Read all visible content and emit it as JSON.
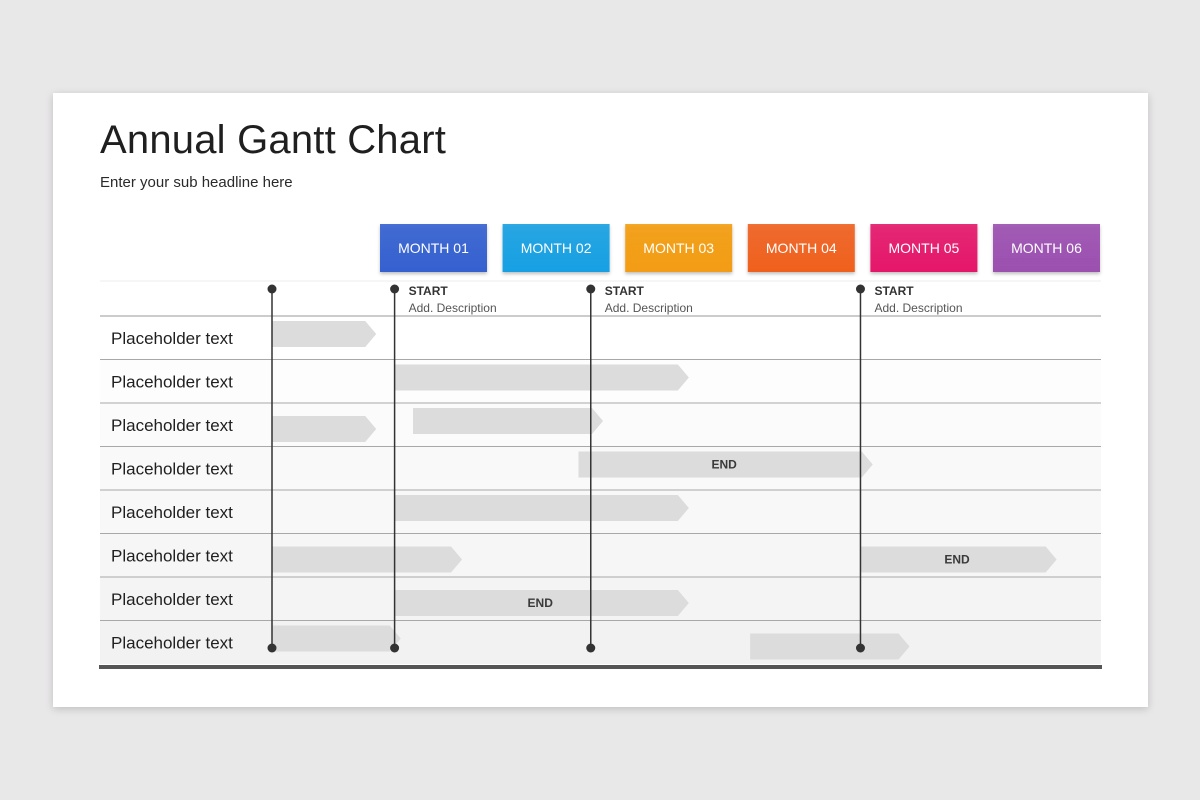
{
  "header": {
    "title": "Annual Gantt Chart",
    "subtitle": "Enter your sub headline here"
  },
  "chart_data": {
    "type": "gantt",
    "months": [
      {
        "label": "MONTH 01",
        "color": "#3460d0"
      },
      {
        "label": "MONTH 02",
        "color": "#14a0e3"
      },
      {
        "label": "MONTH 03",
        "color": "#f39c12"
      },
      {
        "label": "MONTH 04",
        "color": "#f0601e"
      },
      {
        "label": "MONTH 05",
        "color": "#e5156a"
      },
      {
        "label": "MONTH 06",
        "color": "#9b4fb0"
      }
    ],
    "milestones": [
      {
        "month": 0.0,
        "title": "",
        "description": ""
      },
      {
        "month": 1.0,
        "title": "START",
        "description": "Add. Description"
      },
      {
        "month": 2.6,
        "title": "START",
        "description": "Add. Description"
      },
      {
        "month": 4.8,
        "title": "START",
        "description": "Add. Description"
      }
    ],
    "rows": [
      {
        "label": "Placeholder text",
        "tasks": [
          {
            "start": 0.0,
            "end": 0.85,
            "lane": "top",
            "label": ""
          }
        ]
      },
      {
        "label": "Placeholder text",
        "tasks": [
          {
            "start": 1.0,
            "end": 3.4,
            "lane": "top",
            "label": ""
          }
        ]
      },
      {
        "label": "Placeholder text",
        "tasks": [
          {
            "start": 0.0,
            "end": 0.85,
            "lane": "mid",
            "label": ""
          },
          {
            "start": 1.15,
            "end": 2.7,
            "lane": "top",
            "label": ""
          }
        ]
      },
      {
        "label": "Placeholder text",
        "tasks": [
          {
            "start": 2.5,
            "end": 4.9,
            "lane": "top",
            "label": "END"
          }
        ]
      },
      {
        "label": "Placeholder text",
        "tasks": [
          {
            "start": 1.0,
            "end": 3.4,
            "lane": "top",
            "label": ""
          }
        ]
      },
      {
        "label": "Placeholder text",
        "tasks": [
          {
            "start": 0.0,
            "end": 1.55,
            "lane": "mid",
            "label": ""
          },
          {
            "start": 4.8,
            "end": 6.4,
            "lane": "mid",
            "label": "END"
          }
        ]
      },
      {
        "label": "Placeholder text",
        "tasks": [
          {
            "start": 1.0,
            "end": 3.4,
            "lane": "mid",
            "label": "END"
          }
        ]
      },
      {
        "label": "Placeholder text",
        "tasks": [
          {
            "start": 0.0,
            "end": 1.05,
            "lane": "top",
            "label": ""
          },
          {
            "start": 3.9,
            "end": 5.2,
            "lane": "mid",
            "label": ""
          }
        ]
      }
    ]
  }
}
